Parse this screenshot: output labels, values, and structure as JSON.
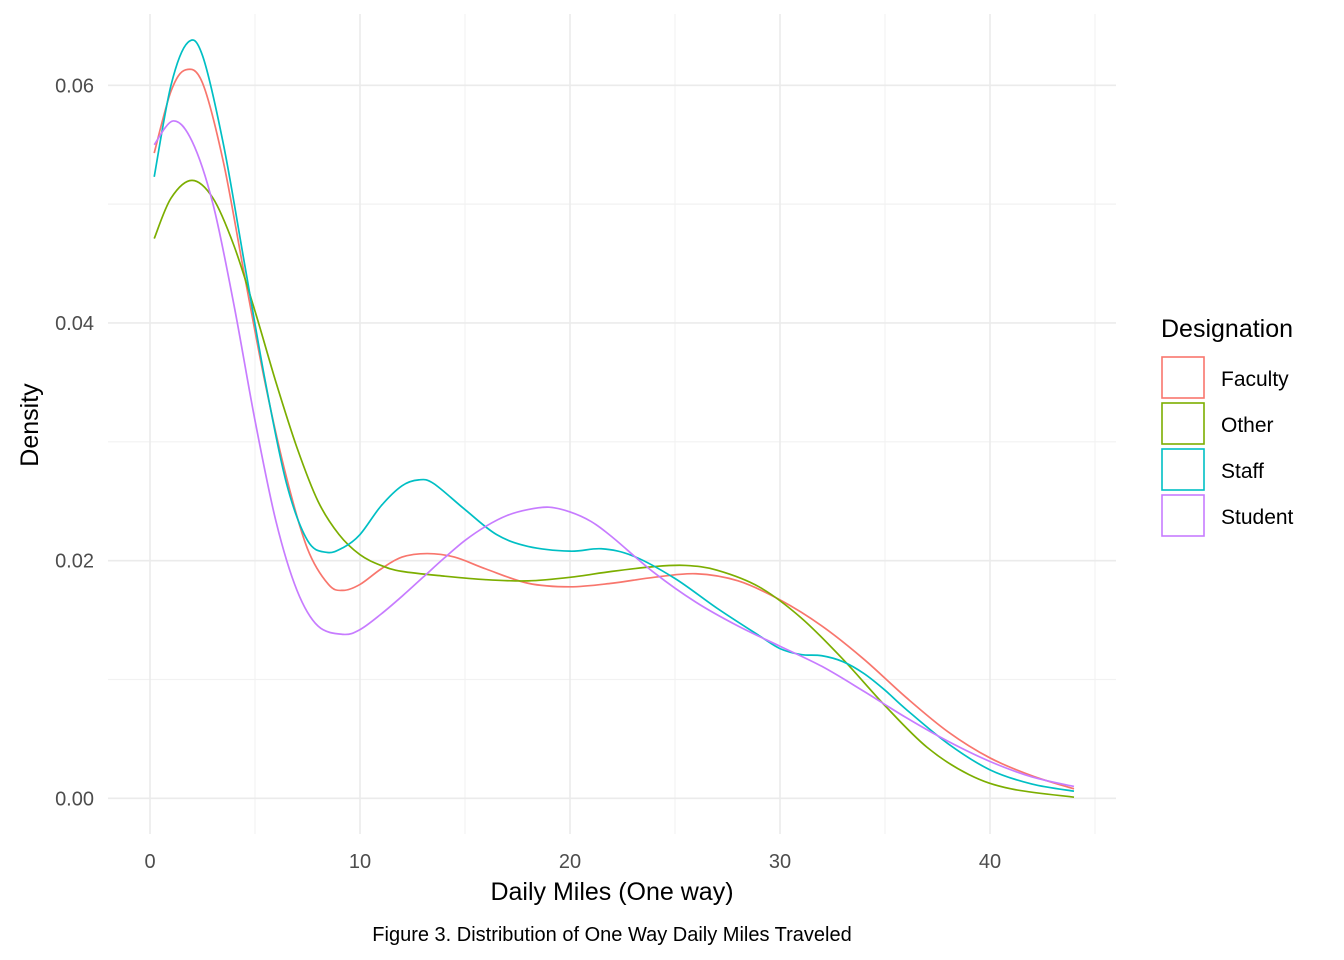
{
  "chart_data": {
    "type": "line",
    "title": "",
    "caption": "Figure 3. Distribution of One Way Daily Miles Traveled",
    "xlabel": "Daily Miles (One way)",
    "ylabel": "Density",
    "xlim": [
      -2,
      46
    ],
    "ylim": [
      -0.003,
      0.066
    ],
    "x_ticks": [
      0,
      10,
      20,
      30,
      40
    ],
    "x_tick_labels": [
      "0",
      "10",
      "20",
      "30",
      "40"
    ],
    "y_ticks": [
      0.0,
      0.02,
      0.04,
      0.06
    ],
    "y_tick_labels": [
      "0.00",
      "0.02",
      "0.04",
      "0.06"
    ],
    "grid": true,
    "legend": {
      "title": "Designation",
      "position": "right"
    },
    "series": [
      {
        "name": "Faculty",
        "color": "#F8766D",
        "points": [
          [
            0.2,
            0.0543
          ],
          [
            1.0,
            0.0595
          ],
          [
            1.7,
            0.0613
          ],
          [
            2.5,
            0.0602
          ],
          [
            3.5,
            0.0535
          ],
          [
            4.5,
            0.044
          ],
          [
            5.5,
            0.0348
          ],
          [
            6.5,
            0.027
          ],
          [
            7.5,
            0.021
          ],
          [
            8.5,
            0.018
          ],
          [
            9.2,
            0.0175
          ],
          [
            10.0,
            0.018
          ],
          [
            11.0,
            0.0193
          ],
          [
            12.0,
            0.0203
          ],
          [
            13.2,
            0.0206
          ],
          [
            14.5,
            0.0203
          ],
          [
            16.0,
            0.0193
          ],
          [
            18.0,
            0.0181
          ],
          [
            20.0,
            0.0178
          ],
          [
            22.0,
            0.0181
          ],
          [
            24.0,
            0.0186
          ],
          [
            26.0,
            0.0189
          ],
          [
            28.0,
            0.0183
          ],
          [
            30.0,
            0.0167
          ],
          [
            32.0,
            0.0145
          ],
          [
            34.0,
            0.0117
          ],
          [
            36.0,
            0.0085
          ],
          [
            38.0,
            0.0056
          ],
          [
            40.0,
            0.0034
          ],
          [
            42.0,
            0.0019
          ],
          [
            44.0,
            0.0008
          ]
        ]
      },
      {
        "name": "Other",
        "color": "#7CAE00",
        "points": [
          [
            0.2,
            0.0471
          ],
          [
            1.0,
            0.0505
          ],
          [
            2.0,
            0.052
          ],
          [
            3.0,
            0.0505
          ],
          [
            4.0,
            0.0465
          ],
          [
            5.0,
            0.041
          ],
          [
            6.0,
            0.035
          ],
          [
            7.0,
            0.0295
          ],
          [
            8.0,
            0.025
          ],
          [
            9.0,
            0.0222
          ],
          [
            10.0,
            0.0205
          ],
          [
            11.0,
            0.0196
          ],
          [
            12.0,
            0.0191
          ],
          [
            14.0,
            0.0187
          ],
          [
            16.0,
            0.0184
          ],
          [
            18.0,
            0.0183
          ],
          [
            20.0,
            0.0186
          ],
          [
            22.0,
            0.0191
          ],
          [
            24.0,
            0.0195
          ],
          [
            25.5,
            0.0196
          ],
          [
            27.0,
            0.0192
          ],
          [
            29.0,
            0.0178
          ],
          [
            31.0,
            0.0152
          ],
          [
            33.0,
            0.0117
          ],
          [
            35.0,
            0.0078
          ],
          [
            37.0,
            0.0043
          ],
          [
            39.0,
            0.002
          ],
          [
            41.0,
            0.0008
          ],
          [
            44.0,
            0.0001
          ]
        ]
      },
      {
        "name": "Staff",
        "color": "#00BFC4",
        "points": [
          [
            0.2,
            0.0523
          ],
          [
            1.0,
            0.06
          ],
          [
            1.8,
            0.0636
          ],
          [
            2.5,
            0.0625
          ],
          [
            3.5,
            0.055
          ],
          [
            4.5,
            0.045
          ],
          [
            5.5,
            0.035
          ],
          [
            6.5,
            0.0265
          ],
          [
            7.5,
            0.0217
          ],
          [
            8.4,
            0.0207
          ],
          [
            9.2,
            0.0211
          ],
          [
            10.0,
            0.0222
          ],
          [
            11.0,
            0.0246
          ],
          [
            12.0,
            0.0263
          ],
          [
            12.8,
            0.0268
          ],
          [
            13.5,
            0.0265
          ],
          [
            15.0,
            0.0243
          ],
          [
            16.5,
            0.0222
          ],
          [
            18.0,
            0.0212
          ],
          [
            20.0,
            0.0208
          ],
          [
            21.5,
            0.021
          ],
          [
            23.0,
            0.0204
          ],
          [
            25.0,
            0.0185
          ],
          [
            27.0,
            0.016
          ],
          [
            29.0,
            0.0137
          ],
          [
            30.0,
            0.0126
          ],
          [
            31.0,
            0.0121
          ],
          [
            32.0,
            0.012
          ],
          [
            33.0,
            0.0115
          ],
          [
            34.0,
            0.0105
          ],
          [
            35.0,
            0.0091
          ],
          [
            36.0,
            0.0075
          ],
          [
            38.0,
            0.0046
          ],
          [
            40.0,
            0.0024
          ],
          [
            42.0,
            0.0012
          ],
          [
            44.0,
            0.0006
          ]
        ]
      },
      {
        "name": "Student",
        "color": "#C77CFF",
        "points": [
          [
            0.2,
            0.055
          ],
          [
            1.1,
            0.057
          ],
          [
            2.0,
            0.0553
          ],
          [
            3.0,
            0.05
          ],
          [
            4.0,
            0.0415
          ],
          [
            5.0,
            0.0318
          ],
          [
            6.0,
            0.0233
          ],
          [
            7.0,
            0.0175
          ],
          [
            8.0,
            0.0145
          ],
          [
            9.2,
            0.0138
          ],
          [
            10.0,
            0.0142
          ],
          [
            11.0,
            0.0155
          ],
          [
            12.0,
            0.017
          ],
          [
            13.0,
            0.0186
          ],
          [
            14.0,
            0.0202
          ],
          [
            15.0,
            0.0217
          ],
          [
            16.0,
            0.0229
          ],
          [
            17.0,
            0.0238
          ],
          [
            18.0,
            0.0243
          ],
          [
            19.0,
            0.0245
          ],
          [
            20.0,
            0.0241
          ],
          [
            21.0,
            0.0233
          ],
          [
            22.0,
            0.022
          ],
          [
            24.0,
            0.019
          ],
          [
            26.0,
            0.0165
          ],
          [
            28.0,
            0.0145
          ],
          [
            30.0,
            0.0128
          ],
          [
            32.0,
            0.0111
          ],
          [
            34.0,
            0.009
          ],
          [
            36.0,
            0.0068
          ],
          [
            38.0,
            0.0048
          ],
          [
            40.0,
            0.0031
          ],
          [
            42.0,
            0.0018
          ],
          [
            44.0,
            0.001
          ]
        ]
      }
    ]
  }
}
